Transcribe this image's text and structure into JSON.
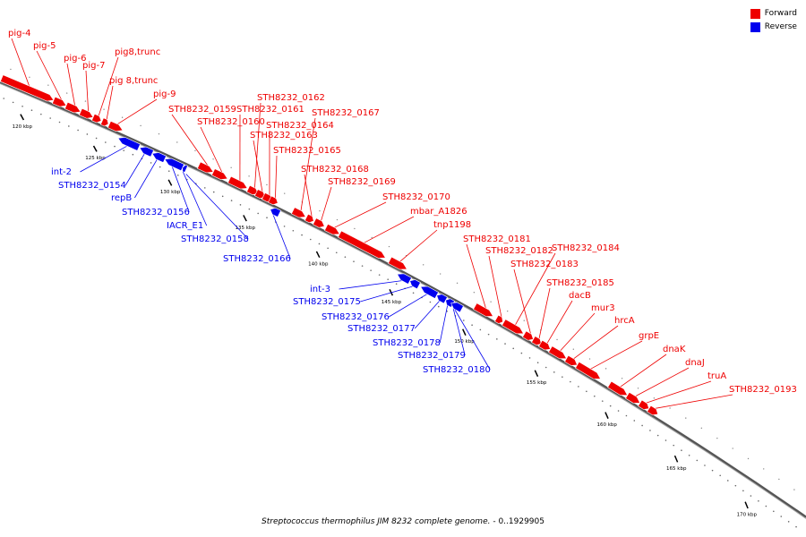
{
  "legend": [
    {
      "label": "Forward",
      "color": "#ee0000"
    },
    {
      "label": "Reverse",
      "color": "#0000ee"
    }
  ],
  "caption": {
    "organism": "Streptococcus thermophilus JIM 8232 complete genome.",
    "range": " - 0..1929905"
  },
  "ticks": [
    {
      "label": "120 kbp",
      "kbp": 120
    },
    {
      "label": "125 kbp",
      "kbp": 125
    },
    {
      "label": "130 kbp",
      "kbp": 130
    },
    {
      "label": "135 kbp",
      "kbp": 135
    },
    {
      "label": "140 kbp",
      "kbp": 140
    },
    {
      "label": "145 kbp",
      "kbp": 145
    },
    {
      "label": "150 kbp",
      "kbp": 150
    },
    {
      "label": "155 kbp",
      "kbp": 155
    },
    {
      "label": "160 kbp",
      "kbp": 160
    },
    {
      "label": "165 kbp",
      "kbp": 165
    },
    {
      "label": "170 kbp",
      "kbp": 170
    }
  ],
  "forward_genes": [
    {
      "label": "pig-4"
    },
    {
      "label": "pig-5"
    },
    {
      "label": "pig-6"
    },
    {
      "label": "pig-7"
    },
    {
      "label": "pig8,trunc"
    },
    {
      "label": "pig 8,trunc"
    },
    {
      "label": "pig-9"
    },
    {
      "label": "STH8232_0159"
    },
    {
      "label": "STH8232_0160"
    },
    {
      "label": "STH8232_0161"
    },
    {
      "label": "STH8232_0162"
    },
    {
      "label": "STH8232_0163"
    },
    {
      "label": "STH8232_0164"
    },
    {
      "label": "STH8232_0165"
    },
    {
      "label": "STH8232_0167"
    },
    {
      "label": "STH8232_0168"
    },
    {
      "label": "STH8232_0169"
    },
    {
      "label": "STH8232_0170"
    },
    {
      "label": "mbar_A1826"
    },
    {
      "label": "tnp1198"
    },
    {
      "label": "STH8232_0181"
    },
    {
      "label": "STH8232_0182"
    },
    {
      "label": "STH8232_0184"
    },
    {
      "label": "STH8232_0183"
    },
    {
      "label": "STH8232_0185"
    },
    {
      "label": "dacB"
    },
    {
      "label": "mur3"
    },
    {
      "label": "hrcA"
    },
    {
      "label": "grpE"
    },
    {
      "label": "dnaK"
    },
    {
      "label": "dnaJ"
    },
    {
      "label": "truA"
    },
    {
      "label": "STH8232_0193"
    }
  ],
  "reverse_genes": [
    {
      "label": "int-2"
    },
    {
      "label": "STH8232_0154"
    },
    {
      "label": "repB"
    },
    {
      "label": "STH8232_0156"
    },
    {
      "label": "IACR_E1"
    },
    {
      "label": "STH8232_0158"
    },
    {
      "label": "STH8232_0166"
    },
    {
      "label": "int-3"
    },
    {
      "label": "STH8232_0175"
    },
    {
      "label": "STH8232_0176"
    },
    {
      "label": "STH8232_0177"
    },
    {
      "label": "STH8232_0178"
    },
    {
      "label": "STH8232_0179"
    },
    {
      "label": "STH8232_0180"
    }
  ]
}
